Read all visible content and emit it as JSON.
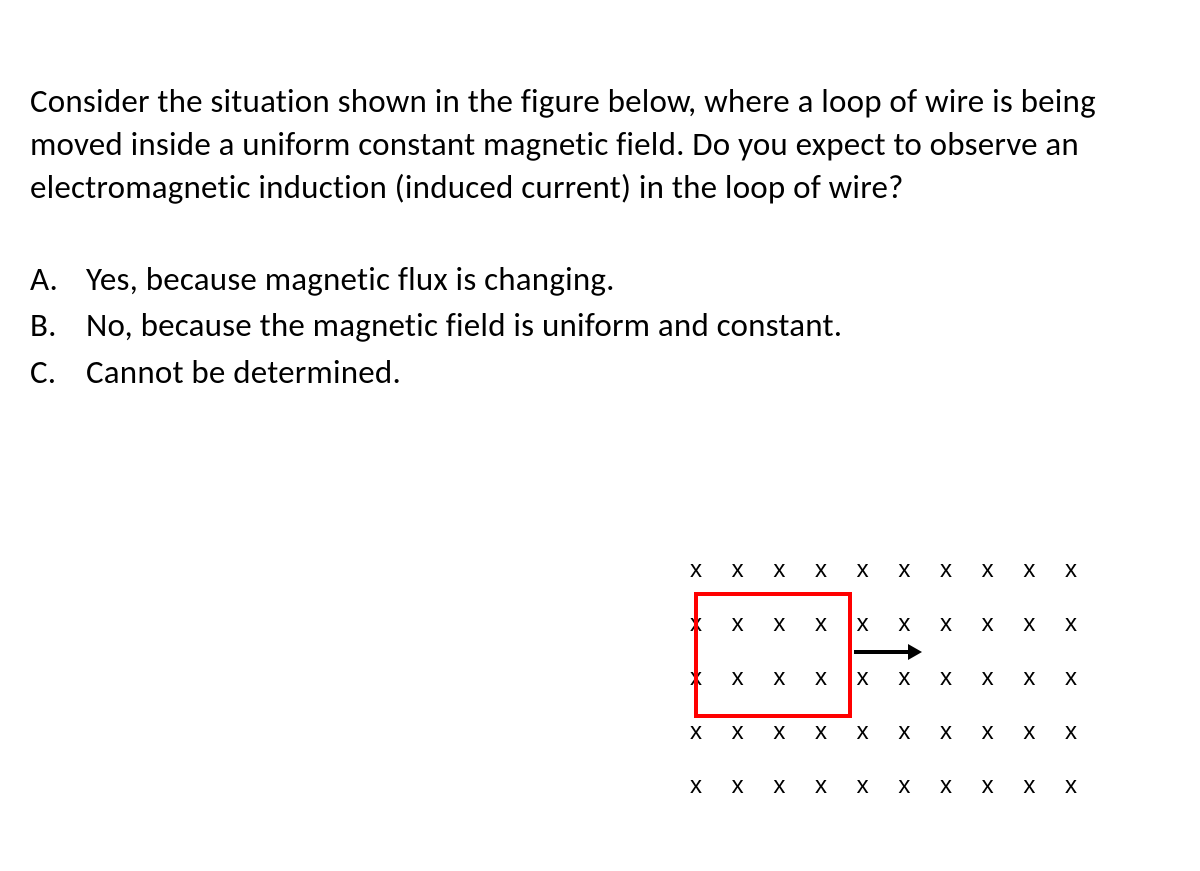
{
  "question": "Consider the situation shown in the figure below, where a loop of wire is being moved inside a uniform constant magnetic field. Do you expect to observe an electromagnetic induction (induced current) in the loop of wire?",
  "options": [
    {
      "letter": "A.",
      "text": "Yes, because magnetic flux is changing."
    },
    {
      "letter": "B.",
      "text": "No, because the magnetic field is uniform and constant."
    },
    {
      "letter": "C.",
      "text": "Cannot be determined."
    }
  ],
  "diagram": {
    "field_symbol": "x",
    "field_rows": 5,
    "field_cols": 10,
    "field_row_text": "x x x x x x x x x x",
    "loop_color": "#ff0000",
    "loop_border_width": 4,
    "arrow_color": "#000000",
    "arrow_direction": "right",
    "background_color": "#ffffff",
    "text_color": "#000000",
    "field_fontsize": 24,
    "field_letter_spacing": 11.5,
    "row_spacing": 26
  },
  "typography": {
    "body_fontsize": 33,
    "body_font": "Calibri, Arial, sans-serif",
    "body_color": "#000000",
    "line_height": 1.3
  }
}
